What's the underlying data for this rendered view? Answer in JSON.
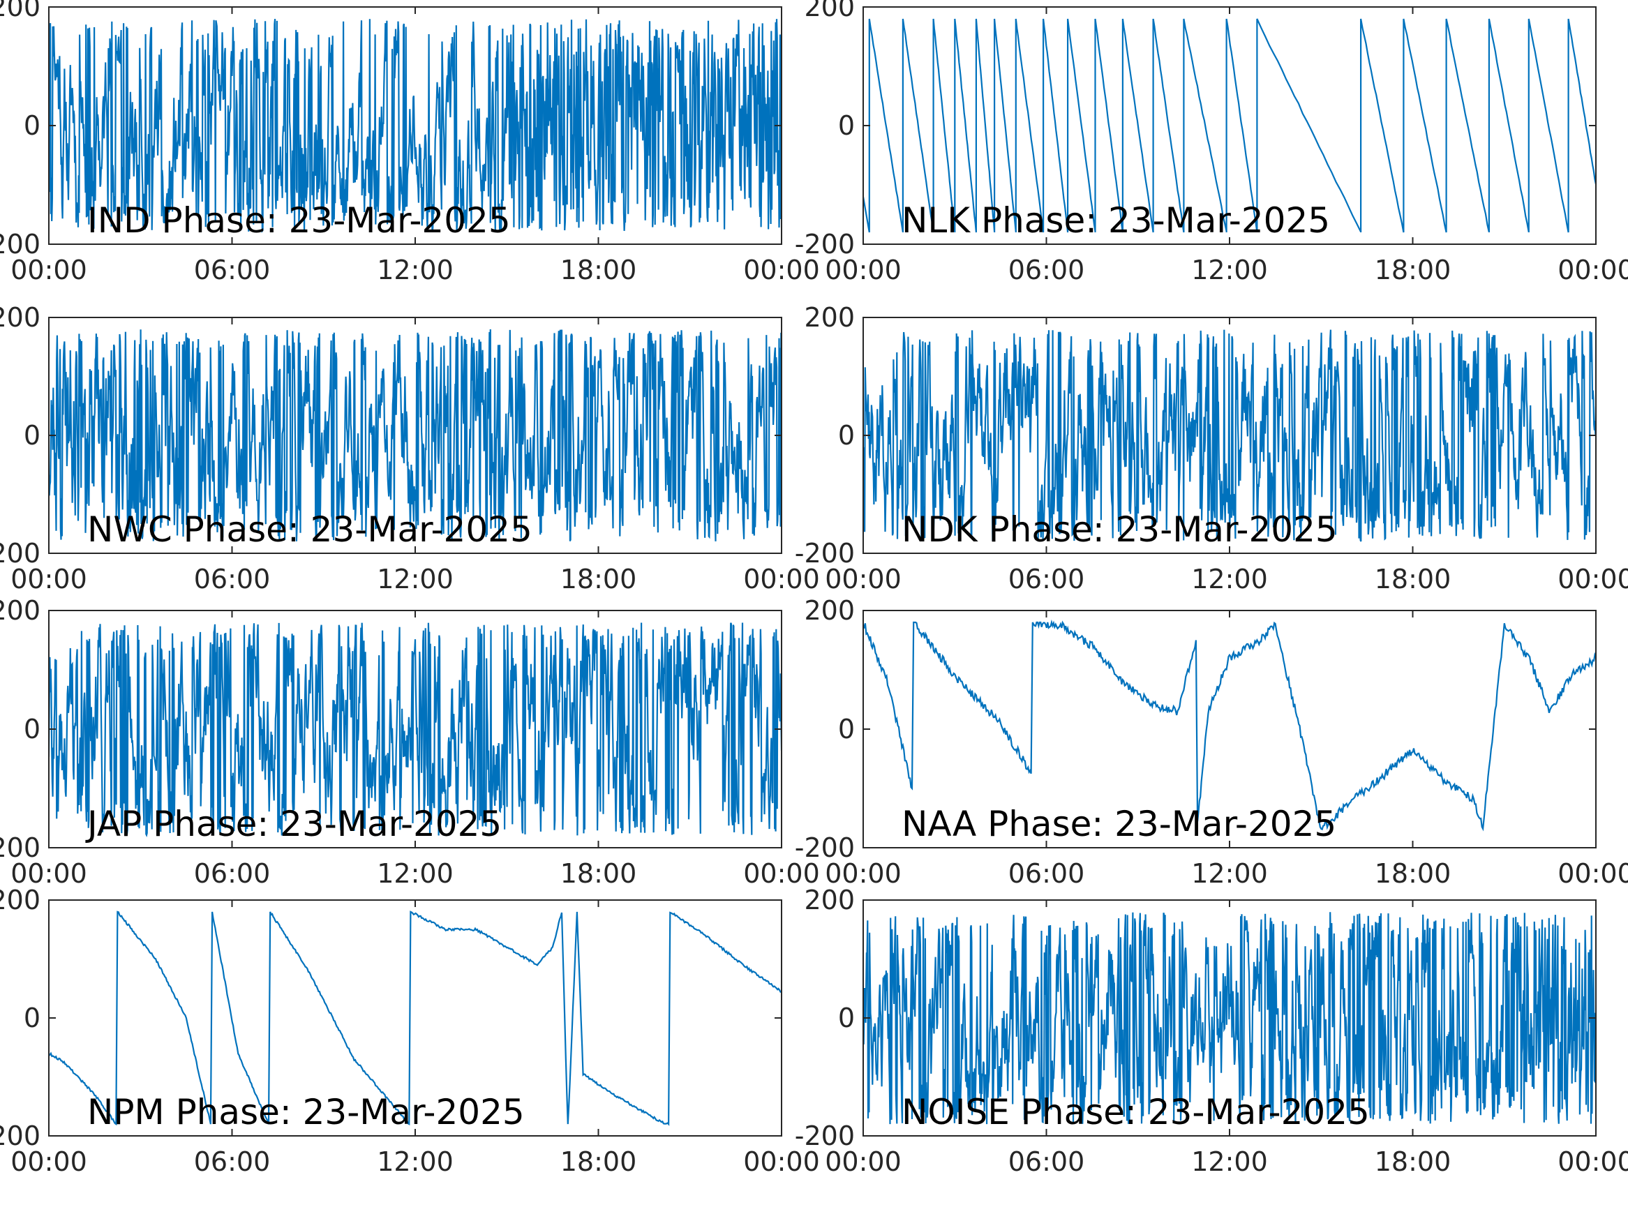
{
  "figure": {
    "line_color": "#0072BD",
    "axes_color": "#262626",
    "grid": false
  },
  "chart_data": [
    {
      "type": "line",
      "title": "IND Phase: 23-Mar-2025",
      "xlabel": "",
      "ylabel": "",
      "xlim": [
        0,
        24
      ],
      "ylim": [
        -200,
        200
      ],
      "xticks": [
        0,
        6,
        12,
        18,
        24
      ],
      "xticklabels": [
        "00:00",
        "06:00",
        "12:00",
        "18:00",
        "00:00"
      ],
      "yticks": [
        -200,
        0,
        200
      ],
      "yticklabels": [
        "-200",
        "0",
        "200"
      ],
      "pattern": "dense_noisy",
      "seed": 11,
      "density": [
        0.55,
        0.55,
        0.75,
        0.45,
        0.5,
        1,
        1,
        1
      ]
    },
    {
      "type": "line",
      "title": "NLK Phase: 23-Mar-2025",
      "xlabel": "",
      "ylabel": "",
      "xlim": [
        0,
        24
      ],
      "ylim": [
        -200,
        200
      ],
      "xticks": [
        0,
        6,
        12,
        18,
        24
      ],
      "xticklabels": [
        "00:00",
        "06:00",
        "12:00",
        "18:00",
        "00:00"
      ],
      "yticks": [
        -200,
        0,
        200
      ],
      "yticklabels": [
        "-200",
        "0",
        "200"
      ],
      "pattern": "sawtooth_down",
      "wrap_times": [
        0.2,
        1.3,
        2.3,
        3.0,
        3.7,
        4.3,
        5.0,
        5.9,
        6.7,
        7.6,
        8.5,
        9.5,
        10.5,
        11.9,
        12.9,
        16.3,
        17.7,
        19.1,
        20.5,
        21.8,
        23.1
      ]
    },
    {
      "type": "line",
      "title": "NWC Phase: 23-Mar-2025",
      "xlabel": "",
      "ylabel": "",
      "xlim": [
        0,
        24
      ],
      "ylim": [
        -200,
        200
      ],
      "xticks": [
        0,
        6,
        12,
        18,
        24
      ],
      "xticklabels": [
        "00:00",
        "06:00",
        "12:00",
        "18:00",
        "00:00"
      ],
      "yticks": [
        -200,
        0,
        200
      ],
      "yticklabels": [
        "-200",
        "0",
        "200"
      ],
      "pattern": "dense_noisy",
      "seed": 23,
      "density": [
        0.9,
        0.7,
        0.55,
        0.45,
        0.6,
        0.65,
        0.6,
        0.6
      ]
    },
    {
      "type": "line",
      "title": "NDK Phase: 23-Mar-2025",
      "xlabel": "",
      "ylabel": "",
      "xlim": [
        0,
        24
      ],
      "ylim": [
        -200,
        200
      ],
      "xticks": [
        0,
        6,
        12,
        18,
        24
      ],
      "xticklabels": [
        "00:00",
        "06:00",
        "12:00",
        "18:00",
        "00:00"
      ],
      "yticks": [
        -200,
        0,
        200
      ],
      "yticklabels": [
        "-200",
        "0",
        "200"
      ],
      "pattern": "dense_noisy",
      "seed": 37,
      "density": [
        0.55,
        0.5,
        0.5,
        0.5,
        0.55,
        0.55,
        0.5,
        0.4
      ]
    },
    {
      "type": "line",
      "title": "JAP Phase: 23-Mar-2025",
      "xlabel": "",
      "ylabel": "",
      "xlim": [
        0,
        24
      ],
      "ylim": [
        -200,
        200
      ],
      "xticks": [
        0,
        6,
        12,
        18,
        24
      ],
      "xticklabels": [
        "00:00",
        "06:00",
        "12:00",
        "18:00",
        "00:00"
      ],
      "yticks": [
        -200,
        0,
        200
      ],
      "yticklabels": [
        "-200",
        "0",
        "200"
      ],
      "pattern": "dense_noisy",
      "seed": 41,
      "density": [
        0.6,
        0.55,
        0.5,
        0.5,
        0.55,
        0.5,
        0.55,
        0.5
      ]
    },
    {
      "type": "line",
      "title": "NAA Phase: 23-Mar-2025",
      "xlabel": "",
      "ylabel": "",
      "xlim": [
        0,
        24
      ],
      "ylim": [
        -200,
        200
      ],
      "xticks": [
        0,
        6,
        12,
        18,
        24
      ],
      "xticklabels": [
        "00:00",
        "06:00",
        "12:00",
        "18:00",
        "00:00"
      ],
      "yticks": [
        -200,
        0,
        200
      ],
      "yticklabels": [
        "-200",
        "0",
        "200"
      ],
      "pattern": "keypoints",
      "noise": 7,
      "x": [
        0,
        0.8,
        1.6,
        1.65,
        3.0,
        4.5,
        5.5,
        5.55,
        6.5,
        7.5,
        8.5,
        9.5,
        10.3,
        10.9,
        10.95,
        11.3,
        12.0,
        13.0,
        13.5,
        14.3,
        15.0,
        16.0,
        17.0,
        18.0,
        19.0,
        20.0,
        20.3,
        21.0,
        21.8,
        22.5,
        23.2,
        24.0
      ],
      "y": [
        180,
        80,
        -100,
        180,
        90,
        10,
        -75,
        180,
        175,
        140,
        80,
        40,
        30,
        150,
        -160,
        30,
        120,
        150,
        175,
        0,
        -170,
        -120,
        -80,
        -35,
        -85,
        -120,
        -165,
        175,
        120,
        30,
        90,
        120
      ]
    },
    {
      "type": "line",
      "title": "NPM Phase: 23-Mar-2025",
      "xlabel": "",
      "ylabel": "",
      "xlim": [
        0,
        24
      ],
      "ylim": [
        -200,
        200
      ],
      "xticks": [
        0,
        6,
        12,
        18,
        24
      ],
      "xticklabels": [
        "00:00",
        "06:00",
        "12:00",
        "18:00",
        "00:00"
      ],
      "yticks": [
        -200,
        0,
        200
      ],
      "yticklabels": [
        "-200",
        "0",
        "200"
      ],
      "pattern": "keypoints",
      "noise": 2,
      "x": [
        0,
        0.5,
        1.5,
        2.2,
        2.25,
        3.5,
        4.5,
        5.3,
        5.35,
        6.2,
        7.2,
        7.25,
        8.5,
        10.0,
        11.8,
        11.85,
        13.0,
        14.0,
        15.0,
        16.0,
        16.5,
        16.8,
        17.0,
        17.3,
        17.5,
        18.5,
        20.0,
        20.3,
        20.35,
        21.5,
        23.0,
        24.0
      ],
      "y": [
        -60,
        -75,
        -130,
        -180,
        180,
        100,
        0,
        -180,
        180,
        -60,
        -180,
        180,
        80,
        -70,
        -180,
        180,
        150,
        150,
        120,
        90,
        120,
        180,
        -190,
        180,
        -95,
        -130,
        -175,
        -180,
        180,
        140,
        80,
        45
      ]
    },
    {
      "type": "line",
      "title": "NOISE Phase: 23-Mar-2025",
      "xlabel": "",
      "ylabel": "",
      "xlim": [
        0,
        24
      ],
      "ylim": [
        -200,
        200
      ],
      "xticks": [
        0,
        6,
        12,
        18,
        24
      ],
      "xticklabels": [
        "00:00",
        "06:00",
        "12:00",
        "18:00",
        "00:00"
      ],
      "yticks": [
        -200,
        0,
        200
      ],
      "yticklabels": [
        "-200",
        "0",
        "200"
      ],
      "pattern": "dense_noisy",
      "seed": 57,
      "density": [
        0.45,
        0.5,
        0.6,
        0.55,
        0.6,
        0.6,
        0.65,
        1
      ]
    }
  ]
}
